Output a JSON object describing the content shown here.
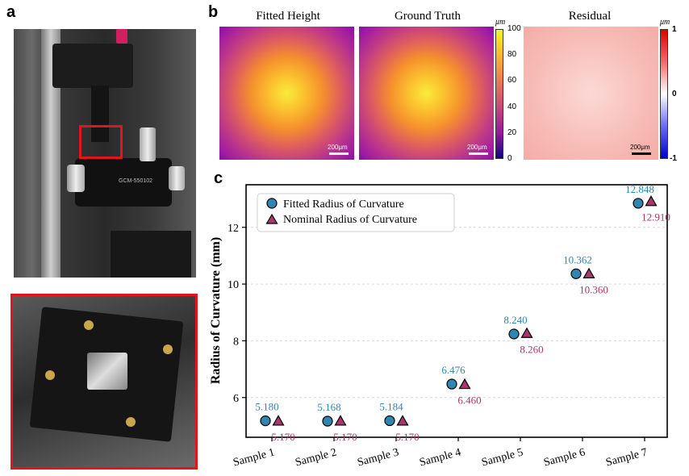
{
  "panel_labels": {
    "a": "a",
    "b": "b",
    "c": "c"
  },
  "panel_b": {
    "titles": {
      "fitted": "Fitted Height",
      "truth": "Ground Truth",
      "residual": "Residual"
    },
    "scale_label": "200μm",
    "colorbar_main": {
      "unit": "μm",
      "ticks": [
        "100",
        "80",
        "60",
        "40",
        "20",
        "0"
      ]
    },
    "colorbar_residual": {
      "unit": "μm",
      "ticks": [
        "1",
        "0",
        "-1"
      ]
    }
  },
  "panel_a": {
    "device_label": "GCM-550102"
  },
  "colors": {
    "fitted": "#2f86b3",
    "nominal": "#a8376b",
    "frame_red": "#e0161e"
  },
  "chart_data": {
    "type": "scatter",
    "categories": [
      "Sample 1",
      "Sample 2",
      "Sample 3",
      "Sample 4",
      "Sample 5",
      "Sample 6",
      "Sample 7"
    ],
    "series": [
      {
        "name": "Fitted Radius of Curvature",
        "marker": "circle",
        "values": [
          5.18,
          5.168,
          5.184,
          6.476,
          8.24,
          10.362,
          12.848
        ],
        "labels": [
          "5.180",
          "5.168",
          "5.184",
          "6.476",
          "8.240",
          "10.362",
          "12.848"
        ]
      },
      {
        "name": "Nominal Radius of Curvature",
        "marker": "triangle",
        "values": [
          5.17,
          5.17,
          5.17,
          6.46,
          8.26,
          10.36,
          12.91
        ],
        "labels": [
          "5.170",
          "5.170",
          "5.170",
          "6.460",
          "8.260",
          "10.360",
          "12.910"
        ]
      }
    ],
    "ylabel": "Radius of Curvature (mm)",
    "xlabel": "",
    "yticks": [
      6,
      8,
      10,
      12
    ],
    "ylim": [
      4.6,
      13.5
    ],
    "grid": true,
    "legend": "top-left"
  }
}
